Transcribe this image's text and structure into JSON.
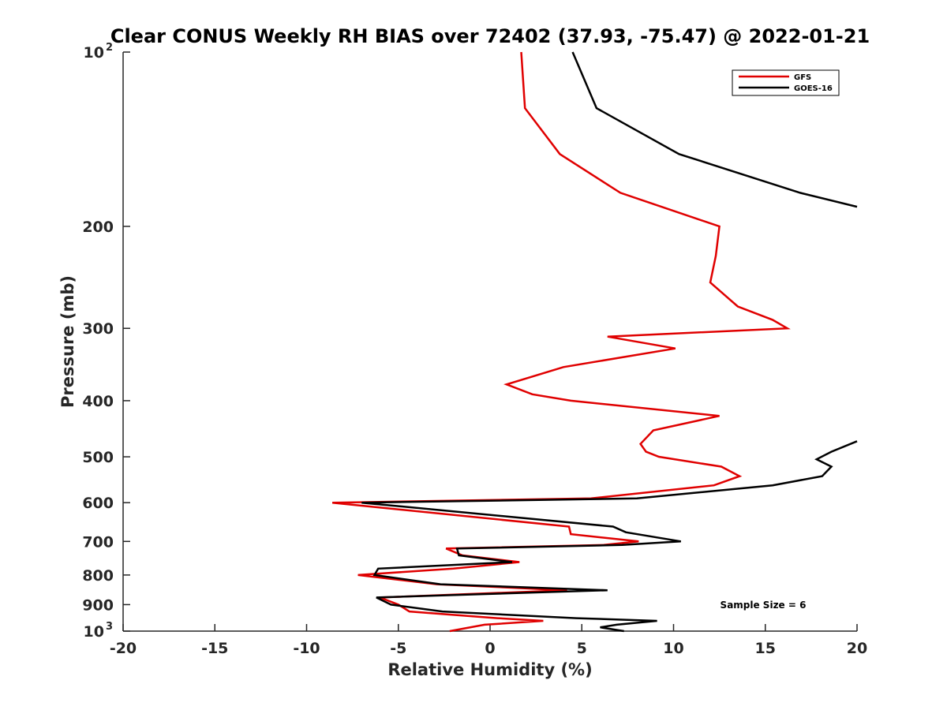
{
  "chart_data": {
    "type": "line",
    "title": "Clear CONUS Weekly RH BIAS over 72402 (37.93, -75.47) @ 2022-01-21",
    "xlabel": "Relative Humidity (%)",
    "ylabel": "Pressure (mb)",
    "xlim": [
      -20,
      20
    ],
    "ylim": [
      100,
      1000
    ],
    "yscale": "log",
    "y_reversed": true,
    "grid": false,
    "legend_position": "top-right",
    "xticks": [
      {
        "value": -20,
        "label": "-20"
      },
      {
        "value": -15,
        "label": "-15"
      },
      {
        "value": -10,
        "label": "-10"
      },
      {
        "value": -5,
        "label": "-5"
      },
      {
        "value": 0,
        "label": "0"
      },
      {
        "value": 5,
        "label": "5"
      },
      {
        "value": 10,
        "label": "10"
      },
      {
        "value": 15,
        "label": "15"
      },
      {
        "value": 20,
        "label": "20"
      }
    ],
    "yticks": [
      {
        "value": 100,
        "label": "10",
        "sup": "2"
      },
      {
        "value": 200,
        "label": "200"
      },
      {
        "value": 300,
        "label": "300"
      },
      {
        "value": 400,
        "label": "400"
      },
      {
        "value": 500,
        "label": "500"
      },
      {
        "value": 600,
        "label": "600"
      },
      {
        "value": 700,
        "label": "700"
      },
      {
        "value": 800,
        "label": "800"
      },
      {
        "value": 900,
        "label": "900"
      },
      {
        "value": 1000,
        "label": "10",
        "sup": "3"
      }
    ],
    "series": [
      {
        "name": "GFS",
        "color": "#e00000",
        "points": [
          [
            1.7,
            100
          ],
          [
            1.9,
            125
          ],
          [
            3.8,
            150
          ],
          [
            7.1,
            175
          ],
          [
            12.5,
            200
          ],
          [
            12.3,
            225
          ],
          [
            12.0,
            250
          ],
          [
            13.5,
            275
          ],
          [
            15.4,
            290
          ],
          [
            16.2,
            300
          ],
          [
            6.4,
            310
          ],
          [
            10.1,
            325
          ],
          [
            4.0,
            350
          ],
          [
            0.9,
            375
          ],
          [
            2.3,
            390
          ],
          [
            4.4,
            400
          ],
          [
            12.5,
            425
          ],
          [
            8.9,
            450
          ],
          [
            8.2,
            475
          ],
          [
            8.5,
            490
          ],
          [
            9.2,
            500
          ],
          [
            12.6,
            520
          ],
          [
            13.6,
            540
          ],
          [
            12.2,
            560
          ],
          [
            5.5,
            590
          ],
          [
            -8.6,
            600
          ],
          [
            4.3,
            660
          ],
          [
            4.4,
            680
          ],
          [
            8.1,
            700
          ],
          [
            6.2,
            710
          ],
          [
            -2.4,
            720
          ],
          [
            -1.5,
            740
          ],
          [
            1.6,
            760
          ],
          [
            -2.0,
            780
          ],
          [
            -7.2,
            800
          ],
          [
            -2.9,
            830
          ],
          [
            4.2,
            850
          ],
          [
            -6.0,
            875
          ],
          [
            -5.0,
            900
          ],
          [
            -4.4,
            925
          ],
          [
            0.4,
            950
          ],
          [
            2.9,
            960
          ],
          [
            -0.3,
            975
          ],
          [
            -2.2,
            1000
          ]
        ]
      },
      {
        "name": "GOES-16",
        "color": "#000000",
        "points": [
          [
            4.5,
            100
          ],
          [
            5.8,
            125
          ],
          [
            10.3,
            150
          ],
          [
            16.9,
            175
          ],
          [
            20.0,
            185
          ]
        ],
        "segments": [
          [
            [
              20.0,
              470
            ],
            [
              18.6,
              490
            ],
            [
              17.8,
              505
            ],
            [
              18.6,
              520
            ],
            [
              18.1,
              540
            ],
            [
              15.4,
              560
            ],
            [
              8.0,
              590
            ],
            [
              -7.0,
              600
            ],
            [
              6.7,
              660
            ],
            [
              7.4,
              675
            ],
            [
              10.4,
              700
            ],
            [
              7.2,
              710
            ],
            [
              -1.8,
              720
            ],
            [
              -1.7,
              740
            ],
            [
              1.2,
              760
            ],
            [
              -6.1,
              780
            ],
            [
              -6.3,
              800
            ],
            [
              -2.7,
              830
            ],
            [
              6.4,
              850
            ],
            [
              -6.2,
              875
            ],
            [
              -5.4,
              900
            ],
            [
              -2.6,
              925
            ],
            [
              4.7,
              950
            ],
            [
              9.1,
              960
            ],
            [
              6.9,
              975
            ],
            [
              6.0,
              985
            ],
            [
              7.3,
              1000
            ]
          ]
        ]
      }
    ],
    "annotations": [
      {
        "text": "Sample Size = 6",
        "position": "bottom-right"
      }
    ]
  }
}
